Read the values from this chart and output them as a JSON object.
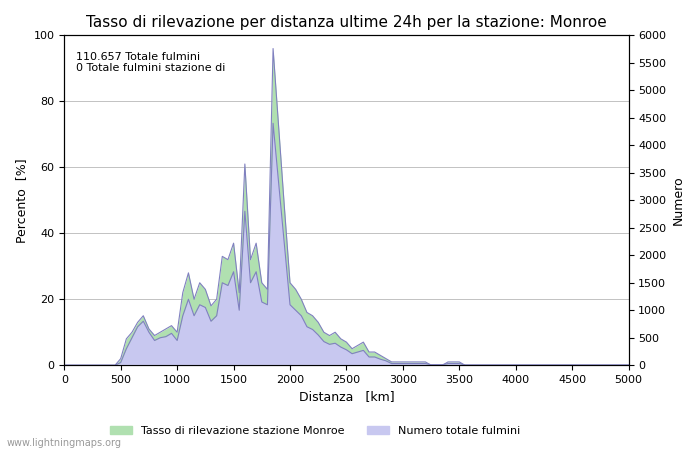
{
  "title": "Tasso di rilevazione per distanza ultime 24h per la stazione: Monroe",
  "xlabel": "Distanza   [km]",
  "ylabel_left": "Percento  [%]",
  "ylabel_right": "Numero",
  "annotation_line1": "110.657 Totale fulmini",
  "annotation_line2": "0 Totale fulmini stazione di",
  "xlim": [
    0,
    5000
  ],
  "ylim_left": [
    0,
    100
  ],
  "ylim_right": [
    0,
    6000
  ],
  "xticks": [
    0,
    500,
    1000,
    1500,
    2000,
    2500,
    3000,
    3500,
    4000,
    4500,
    5000
  ],
  "yticks_left": [
    0,
    20,
    40,
    60,
    80,
    100
  ],
  "yticks_right": [
    0,
    500,
    1000,
    1500,
    2000,
    2500,
    3000,
    3500,
    4000,
    4500,
    5000,
    5500,
    6000
  ],
  "legend_label_green": "Tasso di rilevazione stazione Monroe",
  "legend_label_blue": "Numero totale fulmini",
  "fill_color_blue": "#c8c8f0",
  "line_color_blue": "#8080c0",
  "fill_color_green": "#b0e0b0",
  "watermark": "www.lightningmaps.org",
  "background_color": "#ffffff",
  "grid_color": "#aaaaaa",
  "title_fontsize": 11,
  "label_fontsize": 9,
  "tick_fontsize": 8,
  "distances": [
    0,
    50,
    100,
    150,
    200,
    250,
    300,
    350,
    400,
    450,
    500,
    550,
    600,
    650,
    700,
    750,
    800,
    850,
    900,
    950,
    1000,
    1050,
    1100,
    1150,
    1200,
    1250,
    1300,
    1350,
    1400,
    1450,
    1500,
    1550,
    1600,
    1650,
    1700,
    1750,
    1800,
    1850,
    1900,
    1950,
    2000,
    2050,
    2100,
    2150,
    2200,
    2250,
    2300,
    2350,
    2400,
    2450,
    2500,
    2550,
    2600,
    2650,
    2700,
    2750,
    2800,
    2850,
    2900,
    2950,
    3000,
    3050,
    3100,
    3150,
    3200,
    3250,
    3300,
    3350,
    3400,
    3450,
    3500,
    3550,
    3600,
    3650,
    3700,
    3750,
    3800,
    3850,
    3900,
    3950,
    4000,
    4050,
    4100,
    4150,
    4200,
    4250,
    4300,
    4350,
    4400,
    4450,
    4500,
    4550,
    4600,
    4650,
    4700,
    4750,
    4800,
    4850,
    4900,
    4950,
    5000
  ],
  "percent_values": [
    0,
    0,
    0,
    0,
    0,
    0,
    0,
    0,
    0,
    0,
    2,
    8,
    10,
    13,
    15,
    11,
    9,
    10,
    11,
    12,
    10,
    22,
    28,
    20,
    25,
    23,
    18,
    20,
    33,
    32,
    37,
    22,
    61,
    32,
    37,
    25,
    23,
    96,
    72,
    48,
    25,
    23,
    20,
    16,
    15,
    13,
    10,
    9,
    10,
    8,
    7,
    5,
    6,
    7,
    4,
    4,
    3,
    2,
    1,
    1,
    1,
    1,
    1,
    1,
    1,
    0,
    0,
    0,
    1,
    1,
    1,
    0,
    0,
    0,
    0,
    0,
    0,
    0,
    0,
    0,
    0,
    0,
    0,
    0,
    0,
    0,
    0,
    0,
    0,
    0,
    0,
    0,
    0,
    0,
    0,
    0,
    0,
    0,
    0,
    0,
    0
  ],
  "count_values": [
    0,
    0,
    0,
    0,
    0,
    0,
    0,
    0,
    0,
    0,
    50,
    300,
    500,
    700,
    800,
    600,
    450,
    500,
    520,
    580,
    450,
    900,
    1200,
    900,
    1100,
    1050,
    800,
    900,
    1500,
    1450,
    1700,
    1000,
    2800,
    1500,
    1700,
    1150,
    1100,
    4400,
    3300,
    2200,
    1100,
    1000,
    900,
    700,
    650,
    550,
    430,
    380,
    400,
    330,
    280,
    210,
    240,
    270,
    150,
    150,
    110,
    80,
    30,
    30,
    30,
    30,
    30,
    30,
    30,
    10,
    10,
    10,
    30,
    30,
    30,
    5,
    5,
    5,
    5,
    5,
    5,
    5,
    5,
    5,
    5,
    5,
    5,
    5,
    5,
    5,
    5,
    5,
    5,
    5,
    5,
    5,
    5,
    5,
    5,
    5,
    5,
    5,
    5,
    5,
    5
  ]
}
